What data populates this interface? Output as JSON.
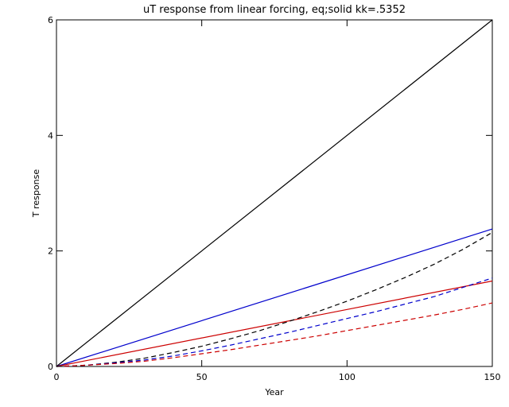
{
  "chart_data": {
    "type": "line",
    "title": "uT response from linear forcing, eq;solid kk=.5352",
    "xlabel": "Year",
    "ylabel": "T response",
    "xlim": [
      0,
      150
    ],
    "ylim": [
      0,
      6
    ],
    "x_ticks": [
      "0",
      "50",
      "100",
      "150"
    ],
    "y_ticks": [
      "0",
      "2",
      "4",
      "6"
    ],
    "x_tick_values": [
      0,
      50,
      100,
      150
    ],
    "y_tick_values": [
      0,
      2,
      4,
      6
    ],
    "grid": false,
    "series": [
      {
        "color": "#000000",
        "style": "solid",
        "x": [
          0,
          150
        ],
        "y": [
          0,
          6.0
        ]
      },
      {
        "color": "#0000cc",
        "style": "solid",
        "x": [
          0,
          150
        ],
        "y": [
          0,
          2.38
        ]
      },
      {
        "color": "#cc0000",
        "style": "solid",
        "x": [
          0,
          150
        ],
        "y": [
          0,
          1.48
        ]
      },
      {
        "color": "#000000",
        "style": "dashed",
        "x": [
          0,
          10,
          20,
          30,
          40,
          50,
          60,
          70,
          80,
          90,
          100,
          110,
          120,
          130,
          140,
          150
        ],
        "y": [
          0,
          0.02,
          0.07,
          0.14,
          0.24,
          0.35,
          0.48,
          0.62,
          0.78,
          0.95,
          1.13,
          1.33,
          1.54,
          1.77,
          2.03,
          2.32
        ]
      },
      {
        "color": "#0000cc",
        "style": "dashed",
        "x": [
          0,
          10,
          20,
          30,
          40,
          50,
          60,
          70,
          80,
          90,
          100,
          110,
          120,
          130,
          140,
          150
        ],
        "y": [
          0,
          0.02,
          0.06,
          0.11,
          0.18,
          0.27,
          0.37,
          0.48,
          0.59,
          0.71,
          0.83,
          0.95,
          1.08,
          1.21,
          1.37,
          1.53
        ]
      },
      {
        "color": "#cc0000",
        "style": "dashed",
        "x": [
          0,
          10,
          20,
          30,
          40,
          50,
          60,
          70,
          80,
          90,
          100,
          110,
          120,
          130,
          140,
          150
        ],
        "y": [
          0,
          0.02,
          0.05,
          0.09,
          0.15,
          0.22,
          0.29,
          0.37,
          0.45,
          0.53,
          0.62,
          0.71,
          0.8,
          0.89,
          0.99,
          1.1
        ]
      }
    ]
  }
}
